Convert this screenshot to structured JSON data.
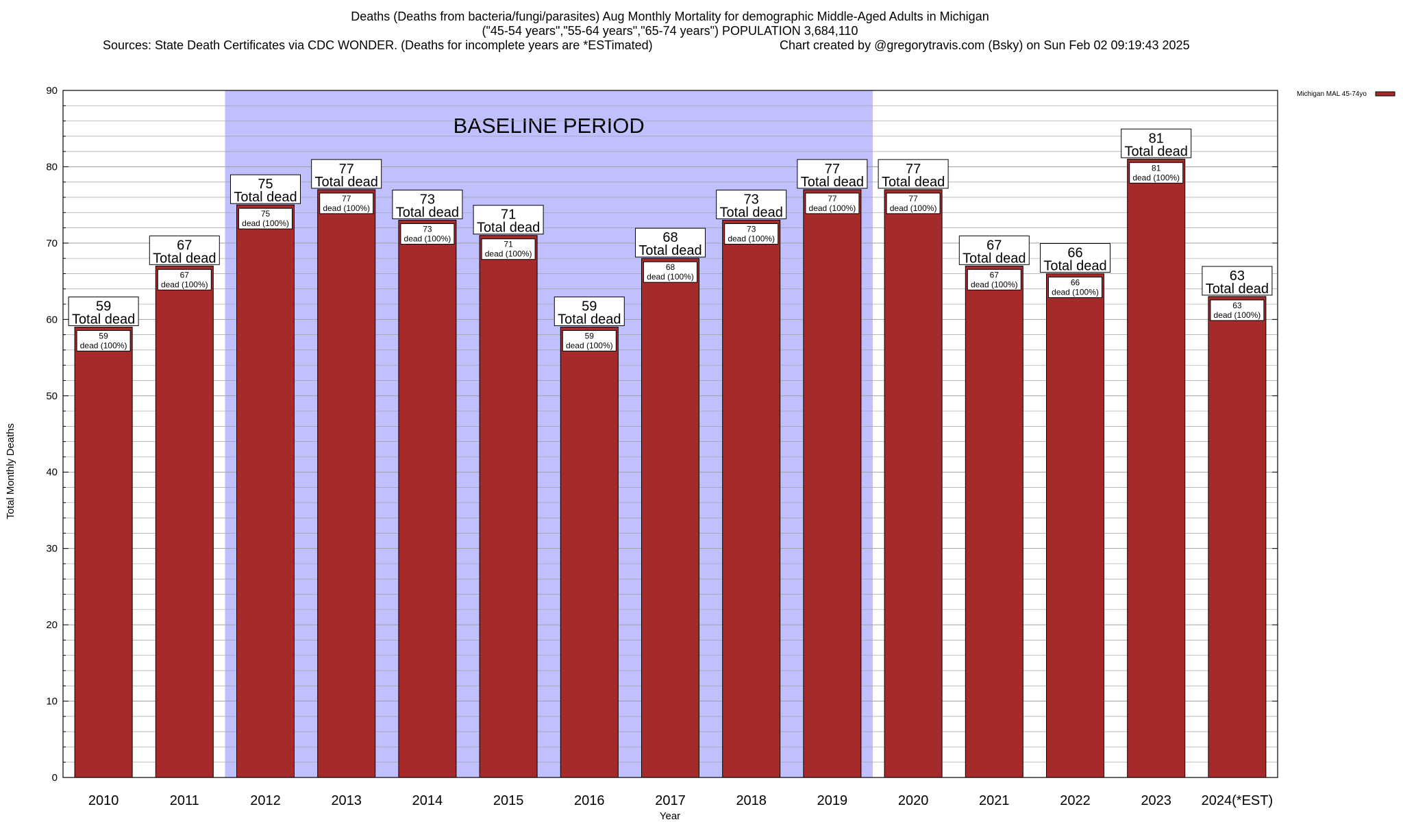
{
  "header": {
    "title_line1": "Deaths (Deaths from bacteria/fungi/parasites) Aug Monthly Mortality for demographic Middle-Aged Adults in Michigan",
    "title_line2": "(\"45-54 years\",\"55-64 years\",\"65-74 years\") POPULATION 3,684,110",
    "sources": "Sources: State Death Certificates via CDC WONDER. (Deaths for incomplete years are *ESTimated)",
    "credit": "Chart created by @gregorytravis.com (Bsky) on Sun Feb 02 09:19:43 2025"
  },
  "chart_data": {
    "type": "bar",
    "title": "Deaths (Deaths from bacteria/fungi/parasites) Aug Monthly Mortality for demographic Middle-Aged Adults in Michigan",
    "xlabel": "Year",
    "ylabel": "Total Monthly Deaths",
    "ylim": [
      0,
      90
    ],
    "yticks": [
      0,
      10,
      20,
      30,
      40,
      50,
      60,
      70,
      80,
      90
    ],
    "minor_grid_step": 2,
    "grid": true,
    "categories": [
      "2010",
      "2011",
      "2012",
      "2013",
      "2014",
      "2015",
      "2016",
      "2017",
      "2018",
      "2019",
      "2020",
      "2021",
      "2022",
      "2023",
      "2024(*EST)"
    ],
    "series": [
      {
        "name": "Michigan MAL 45-74yo",
        "values": [
          59,
          67,
          75,
          77,
          73,
          71,
          59,
          68,
          73,
          77,
          77,
          67,
          66,
          81,
          63
        ]
      }
    ],
    "top_label_suffix": "Total dead",
    "inner_label_suffix": "dead (100%)",
    "baseline_period": {
      "label": "BASELINE PERIOD",
      "start": "2012",
      "end": "2019"
    },
    "legend_position": "top-right",
    "colors": {
      "bar": "#a52a2a",
      "baseline_shade": "#c0c0ff",
      "grid": "#a0a0a0"
    }
  }
}
